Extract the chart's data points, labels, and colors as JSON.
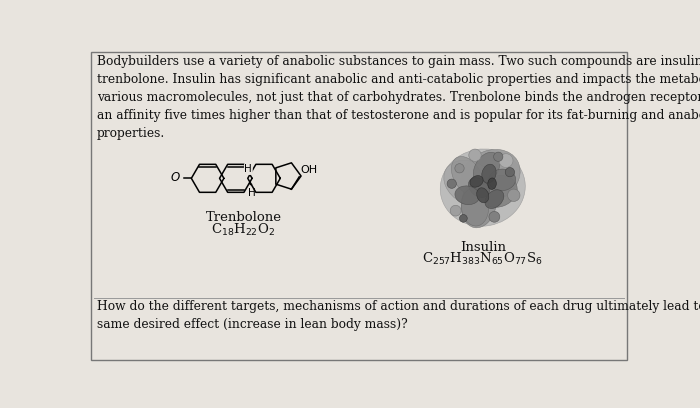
{
  "background_color": "#e8e4de",
  "border_color": "#777777",
  "paragraph_text": "Bodybuilders use a variety of anabolic substances to gain mass. Two such compounds are insulin and\ntrenbolone. Insulin has significant anabolic and anti-catabolic properties and impacts the metabolism of\nvarious macromolecules, not just that of carbohydrates. Trenbolone binds the androgen receptor with\nan affinity five times higher than that of testosterone and is popular for its fat-burning and anabolic\nproperties.",
  "trenbolone_label": "Trenbolone",
  "trenbolone_formula": "C$_{18}$H$_{22}$O$_2$",
  "insulin_label": "Insulin",
  "insulin_formula": "C$_{257}$H$_{383}$N$_{65}$O$_{77}$S$_6$",
  "question_text": "How do the different targets, mechanisms of action and durations of each drug ultimately lead to the\nsame desired effect (increase in lean body mass)?",
  "text_color": "#111111",
  "font_size_body": 8.8,
  "font_size_label": 9.5,
  "font_size_formula": 9.5,
  "font_size_question": 8.8
}
